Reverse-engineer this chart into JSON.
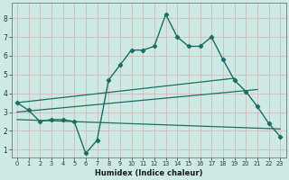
{
  "xlabel": "Humidex (Indice chaleur)",
  "bg_color": "#cce9e4",
  "grid_color": "#d8b8b8",
  "line_color": "#1a6e62",
  "xlim": [
    -0.5,
    23.5
  ],
  "ylim": [
    0.6,
    8.8
  ],
  "xticks": [
    0,
    1,
    2,
    3,
    4,
    5,
    6,
    7,
    8,
    9,
    10,
    11,
    12,
    13,
    14,
    15,
    16,
    17,
    18,
    19,
    20,
    21,
    22,
    23
  ],
  "yticks": [
    1,
    2,
    3,
    4,
    5,
    6,
    7,
    8
  ],
  "line1_x": [
    0,
    1,
    2,
    3,
    4,
    5,
    6,
    7,
    8,
    9,
    10,
    11,
    12,
    13,
    14,
    15,
    16,
    17,
    18,
    19,
    20,
    21,
    22,
    23
  ],
  "line1_y": [
    3.5,
    3.1,
    2.5,
    2.6,
    2.6,
    2.5,
    0.8,
    1.5,
    4.7,
    5.5,
    6.3,
    6.3,
    6.5,
    8.2,
    7.0,
    6.5,
    6.5,
    7.0,
    5.8,
    4.7,
    4.1,
    3.3,
    2.4,
    1.7
  ],
  "line2_x": [
    0,
    19
  ],
  "line2_y": [
    3.5,
    4.8
  ],
  "line3_x": [
    0,
    21
  ],
  "line3_y": [
    3.0,
    4.2
  ],
  "line4_x": [
    0,
    23
  ],
  "line4_y": [
    2.6,
    2.1
  ]
}
